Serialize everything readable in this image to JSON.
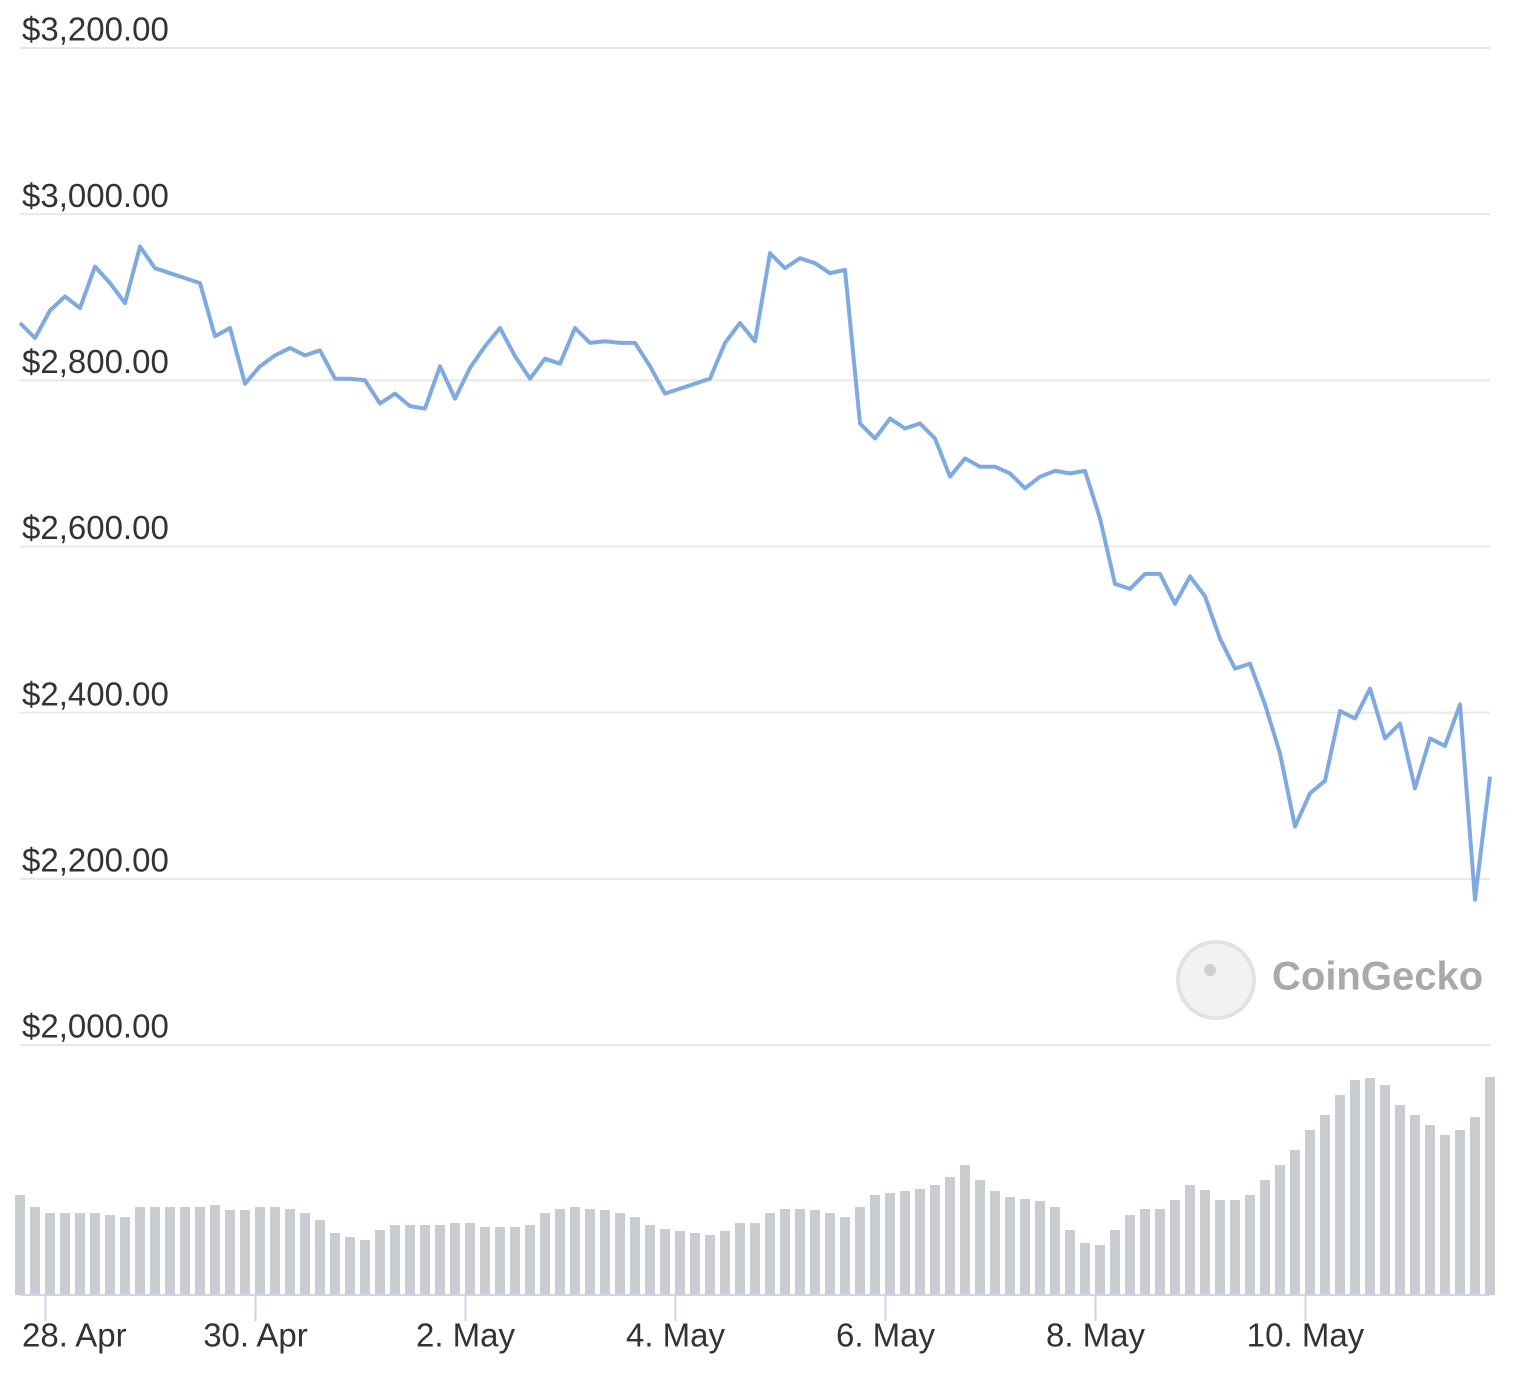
{
  "chart_data": {
    "type": "line",
    "watermark": "CoinGecko",
    "xlim": [
      0,
      98
    ],
    "xticks": [
      {
        "value": 1.7,
        "label": "28. Apr"
      },
      {
        "value": 15.7,
        "label": "30. Apr"
      },
      {
        "value": 29.7,
        "label": "2. May"
      },
      {
        "value": 43.7,
        "label": "4. May"
      },
      {
        "value": 57.7,
        "label": "6. May"
      },
      {
        "value": 71.7,
        "label": "8. May"
      },
      {
        "value": 85.7,
        "label": "10. May"
      }
    ],
    "ylim": [
      2000,
      3200
    ],
    "yticks": [
      {
        "value": 2000,
        "label": "$2,000.00"
      },
      {
        "value": 2200,
        "label": "$2,200.00"
      },
      {
        "value": 2400,
        "label": "$2,400.00"
      },
      {
        "value": 2600,
        "label": "$2,600.00"
      },
      {
        "value": 2800,
        "label": "$2,800.00"
      },
      {
        "value": 3000,
        "label": "$3,000.00"
      },
      {
        "value": 3200,
        "label": "$3,200.00"
      }
    ],
    "y2lim": [
      0,
      250
    ],
    "grid": true,
    "series": [
      {
        "type": "line",
        "color": "#7ea9e1",
        "values": [
          2869,
          2851,
          2884,
          2901,
          2887,
          2937,
          2917,
          2893,
          2961,
          2935,
          2929,
          2923,
          2917,
          2853,
          2863,
          2796,
          2817,
          2830,
          2839,
          2830,
          2836,
          2802,
          2802,
          2800,
          2772,
          2784,
          2769,
          2766,
          2817,
          2778,
          2815,
          2841,
          2863,
          2829,
          2802,
          2826,
          2820,
          2863,
          2845,
          2847,
          2845,
          2845,
          2817,
          2784,
          2790,
          2796,
          2802,
          2845,
          2869,
          2847,
          2953,
          2935,
          2947,
          2941,
          2929,
          2933,
          2748,
          2730,
          2754,
          2742,
          2748,
          2730,
          2684,
          2706,
          2696,
          2696,
          2688,
          2670,
          2684,
          2691,
          2688,
          2691,
          2634,
          2555,
          2549,
          2567,
          2567,
          2531,
          2564,
          2540,
          2489,
          2453,
          2459,
          2410,
          2351,
          2263,
          2303,
          2318,
          2402,
          2393,
          2429,
          2369,
          2387,
          2309,
          2369,
          2360,
          2410,
          2175,
          2323
        ]
      },
      {
        "type": "bar",
        "axis": "y2",
        "color": "#c9ccd1",
        "values": [
          100,
          88,
          82,
          82,
          82,
          82,
          80,
          78,
          88,
          88,
          88,
          88,
          88,
          90,
          85,
          85,
          88,
          88,
          86,
          82,
          75,
          62,
          58,
          55,
          65,
          70,
          70,
          70,
          70,
          72,
          72,
          68,
          68,
          68,
          70,
          82,
          86,
          88,
          86,
          85,
          82,
          78,
          70,
          66,
          64,
          62,
          60,
          64,
          72,
          72,
          82,
          86,
          86,
          85,
          82,
          78,
          88,
          100,
          102,
          104,
          106,
          110,
          118,
          130,
          115,
          104,
          98,
          96,
          94,
          88,
          65,
          52,
          50,
          65,
          80,
          86,
          86,
          95,
          110,
          105,
          95,
          95,
          100,
          115,
          130,
          145,
          165,
          180,
          200,
          215,
          217,
          210,
          190,
          180,
          170,
          160,
          165,
          178,
          218
        ]
      }
    ]
  }
}
